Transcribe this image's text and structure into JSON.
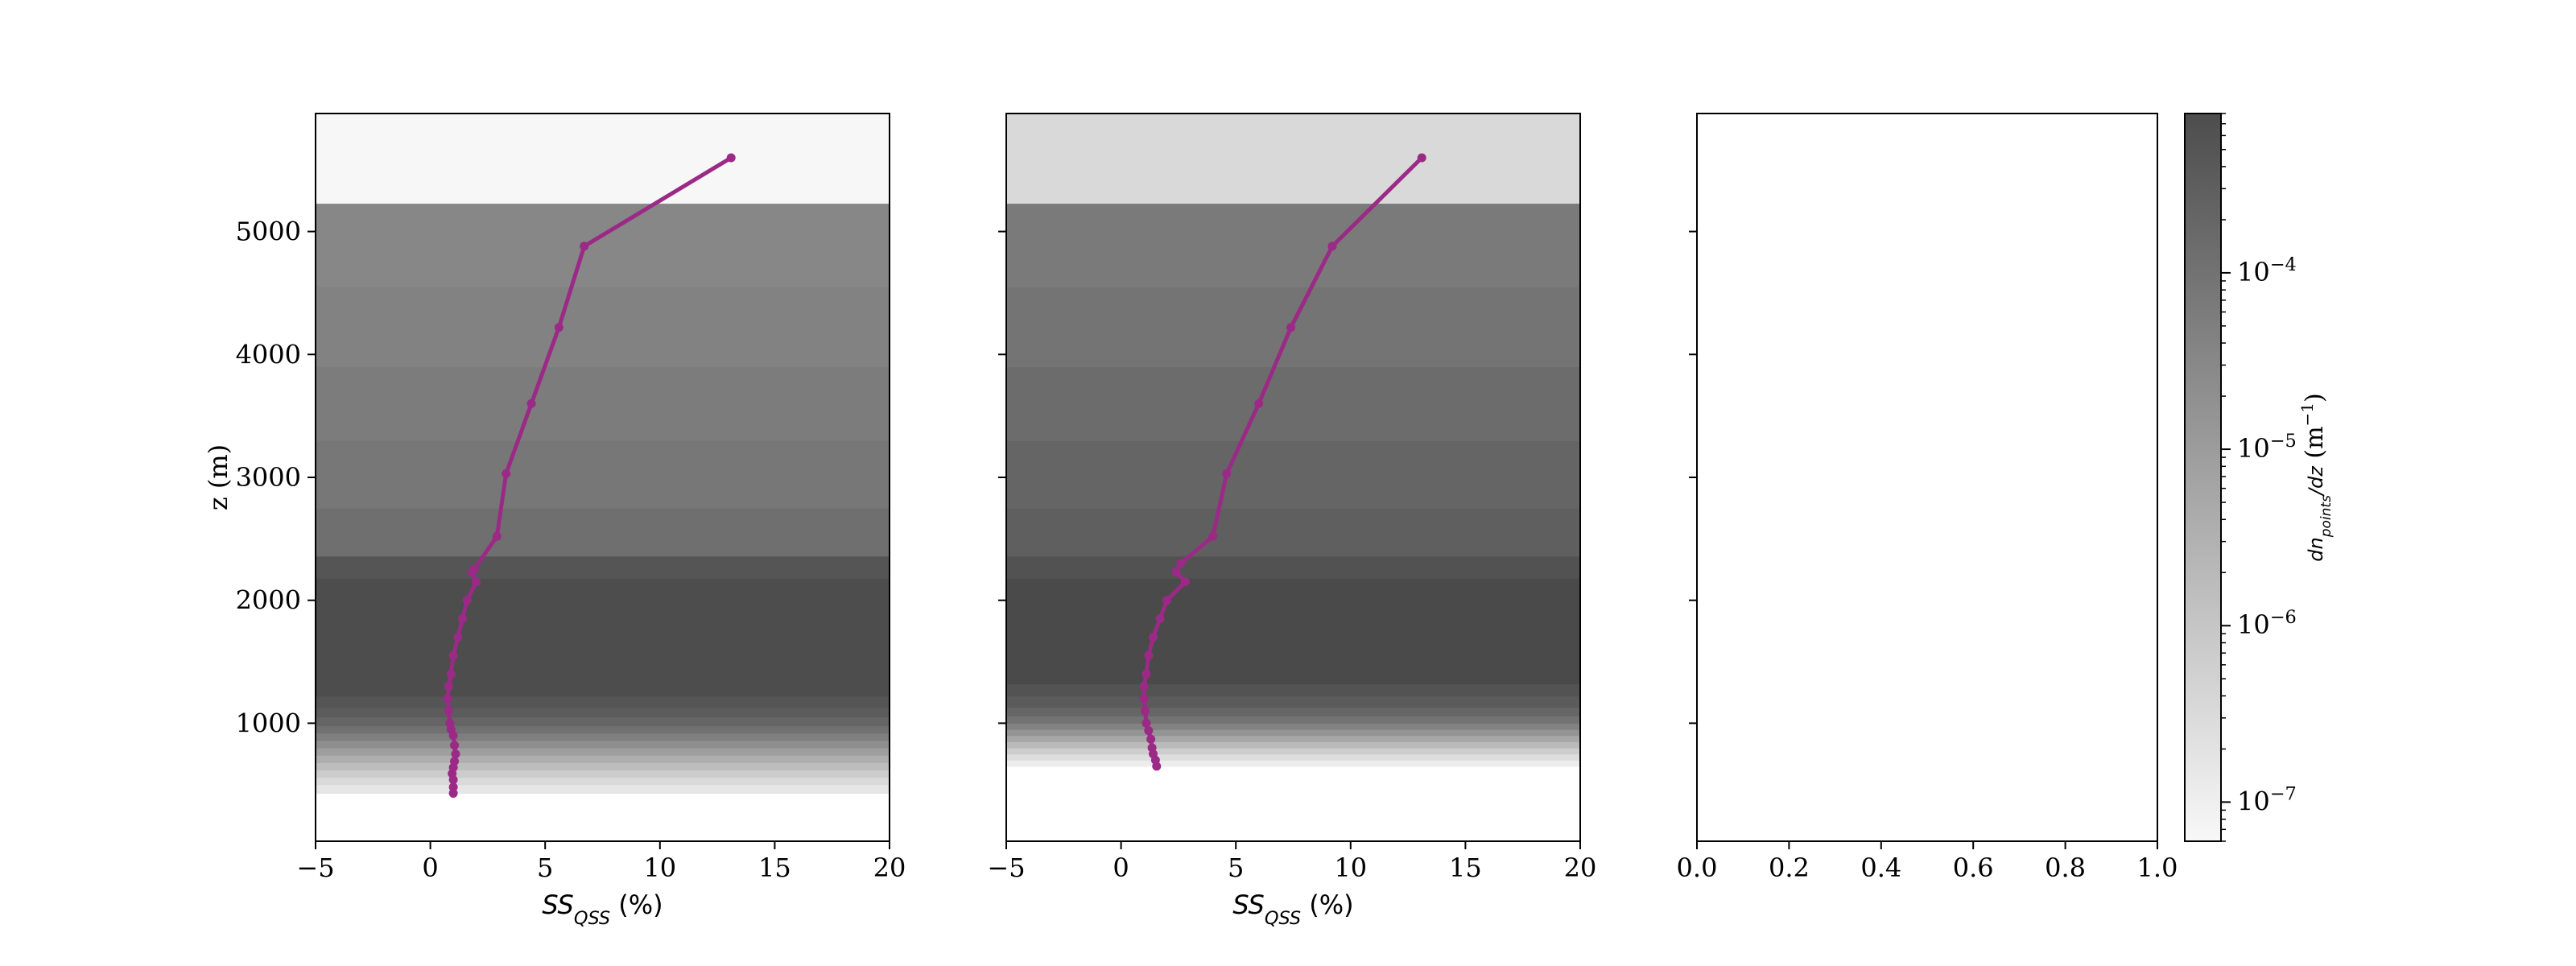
{
  "figure": {
    "background": "#ffffff"
  },
  "chart_data": [
    {
      "type": "line",
      "panel": "left",
      "xlabel": "SS_QSS (%)",
      "ylabel": "z (m)",
      "xlim": [
        -5,
        20
      ],
      "ylim": [
        40,
        5960
      ],
      "xticks": [
        -5,
        0,
        5,
        10,
        15,
        20
      ],
      "yticks": [
        1000,
        2000,
        3000,
        4000,
        5000
      ],
      "grid": false,
      "background_bands": [
        {
          "z0": 40,
          "z1": 430,
          "shade": "#ffffff"
        },
        {
          "z0": 430,
          "z1": 500,
          "shade": "#e6e6e6"
        },
        {
          "z0": 500,
          "z1": 560,
          "shade": "#dadada"
        },
        {
          "z0": 560,
          "z1": 620,
          "shade": "#cccccc"
        },
        {
          "z0": 620,
          "z1": 680,
          "shade": "#bdbdbd"
        },
        {
          "z0": 680,
          "z1": 740,
          "shade": "#aeaeae"
        },
        {
          "z0": 740,
          "z1": 800,
          "shade": "#9e9e9e"
        },
        {
          "z0": 800,
          "z1": 860,
          "shade": "#8e8e8e"
        },
        {
          "z0": 860,
          "z1": 920,
          "shade": "#7f7f7f"
        },
        {
          "z0": 920,
          "z1": 980,
          "shade": "#717171"
        },
        {
          "z0": 980,
          "z1": 1050,
          "shade": "#656565"
        },
        {
          "z0": 1050,
          "z1": 1130,
          "shade": "#5c5c5c"
        },
        {
          "z0": 1130,
          "z1": 1220,
          "shade": "#555555"
        },
        {
          "z0": 1220,
          "z1": 2180,
          "shade": "#4d4d4d"
        },
        {
          "z0": 2180,
          "z1": 2360,
          "shade": "#555555"
        },
        {
          "z0": 2360,
          "z1": 2750,
          "shade": "#6f6f6f"
        },
        {
          "z0": 2750,
          "z1": 3300,
          "shade": "#777777"
        },
        {
          "z0": 3300,
          "z1": 3900,
          "shade": "#7c7c7c"
        },
        {
          "z0": 3900,
          "z1": 4550,
          "shade": "#828282"
        },
        {
          "z0": 4550,
          "z1": 5230,
          "shade": "#878787"
        },
        {
          "z0": 5230,
          "z1": 5960,
          "shade": "#f7f7f7"
        }
      ],
      "series": [
        {
          "color": "#9b2a86",
          "x": [
            13.1,
            6.7,
            5.6,
            4.4,
            3.3,
            2.9,
            1.9,
            1.8,
            2.0,
            1.6,
            1.4,
            1.2,
            1.0,
            0.9,
            0.8,
            0.75,
            0.8,
            0.85,
            0.9,
            1.0,
            1.05,
            1.1,
            1.05,
            1.0,
            0.95,
            1.0,
            1.0,
            1.0
          ],
          "y": [
            5600,
            4880,
            4220,
            3600,
            3030,
            2520,
            2250,
            2230,
            2150,
            2000,
            1850,
            1700,
            1550,
            1400,
            1300,
            1200,
            1100,
            1000,
            950,
            900,
            820,
            750,
            690,
            640,
            590,
            540,
            480,
            430
          ]
        }
      ]
    },
    {
      "type": "line",
      "panel": "middle",
      "xlabel": "SS_QSS (%)",
      "xlim": [
        -5,
        20
      ],
      "ylim": [
        40,
        5960
      ],
      "xticks": [
        -5,
        0,
        5,
        10,
        15,
        20
      ],
      "grid": false,
      "background_bands": [
        {
          "z0": 40,
          "z1": 650,
          "shade": "#ffffff"
        },
        {
          "z0": 650,
          "z1": 700,
          "shade": "#ececec"
        },
        {
          "z0": 700,
          "z1": 750,
          "shade": "#dedede"
        },
        {
          "z0": 750,
          "z1": 800,
          "shade": "#cdcdcd"
        },
        {
          "z0": 800,
          "z1": 850,
          "shade": "#bababa"
        },
        {
          "z0": 850,
          "z1": 900,
          "shade": "#a7a7a7"
        },
        {
          "z0": 900,
          "z1": 950,
          "shade": "#949494"
        },
        {
          "z0": 950,
          "z1": 1000,
          "shade": "#828282"
        },
        {
          "z0": 1000,
          "z1": 1060,
          "shade": "#737373"
        },
        {
          "z0": 1060,
          "z1": 1130,
          "shade": "#666666"
        },
        {
          "z0": 1130,
          "z1": 1220,
          "shade": "#5b5b5b"
        },
        {
          "z0": 1220,
          "z1": 1320,
          "shade": "#535353"
        },
        {
          "z0": 1320,
          "z1": 2180,
          "shade": "#4a4a4a"
        },
        {
          "z0": 2180,
          "z1": 2360,
          "shade": "#525252"
        },
        {
          "z0": 2360,
          "z1": 2750,
          "shade": "#5f5f5f"
        },
        {
          "z0": 2750,
          "z1": 3300,
          "shade": "#656565"
        },
        {
          "z0": 3300,
          "z1": 3900,
          "shade": "#6c6c6c"
        },
        {
          "z0": 3900,
          "z1": 4550,
          "shade": "#747474"
        },
        {
          "z0": 4550,
          "z1": 5230,
          "shade": "#7a7a7a"
        },
        {
          "z0": 5230,
          "z1": 5960,
          "shade": "#d9d9d9"
        }
      ],
      "series": [
        {
          "color": "#9b2a86",
          "x": [
            13.1,
            9.2,
            7.4,
            6.0,
            4.6,
            4.0,
            2.6,
            2.4,
            2.8,
            2.0,
            1.7,
            1.4,
            1.2,
            1.1,
            1.0,
            1.0,
            1.05,
            1.1,
            1.2,
            1.3,
            1.35,
            1.4,
            1.5,
            1.55
          ],
          "y": [
            5600,
            4880,
            4220,
            3600,
            3030,
            2520,
            2300,
            2230,
            2150,
            2000,
            1850,
            1700,
            1550,
            1400,
            1300,
            1200,
            1100,
            1000,
            940,
            870,
            800,
            750,
            700,
            650
          ]
        }
      ]
    },
    {
      "type": "line",
      "panel": "right",
      "xlim": [
        0.0,
        1.0
      ],
      "ylim": [
        40,
        5960
      ],
      "xticks": [
        "0.0",
        "0.2",
        "0.4",
        "0.6",
        "0.8",
        "1.0"
      ],
      "grid": false,
      "series": []
    }
  ],
  "colorbar": {
    "label": "dn_points/dz (m^-1)",
    "scale": "log",
    "range": [
      6e-08,
      0.0008
    ],
    "ticks": [
      "10^-7",
      "10^-6",
      "10^-5",
      "10^-4"
    ],
    "colormap": [
      "#f8f8f8",
      "#4d4d4d"
    ]
  }
}
